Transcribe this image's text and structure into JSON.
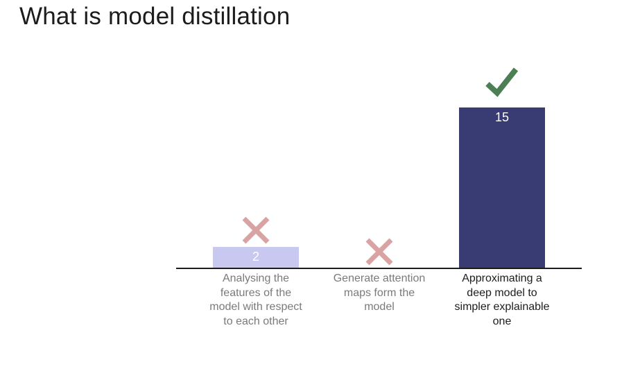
{
  "title": "What is model distillation",
  "chart_data": {
    "type": "bar",
    "categories": [
      "Analysing the features of the model with respect to each other",
      "Generate attention maps form the model",
      "Approximating a deep model to simpler explainable one"
    ],
    "values": [
      2,
      0,
      15
    ],
    "data_labels": [
      "2",
      "",
      "15"
    ],
    "markers": [
      "cross",
      "cross",
      "check"
    ],
    "ylim": [
      0,
      15
    ],
    "grid": false,
    "colors": {
      "bars": [
        "#c8c8f0",
        "#c8c8f0",
        "#383c73"
      ],
      "labels": [
        "#7a7a7a",
        "#7a7a7a",
        "#1c1c1c"
      ],
      "cross": "#d9a3a3",
      "check": "#4d7f55",
      "axis": "#1c1c1c",
      "data_label": "#ffffff"
    }
  }
}
